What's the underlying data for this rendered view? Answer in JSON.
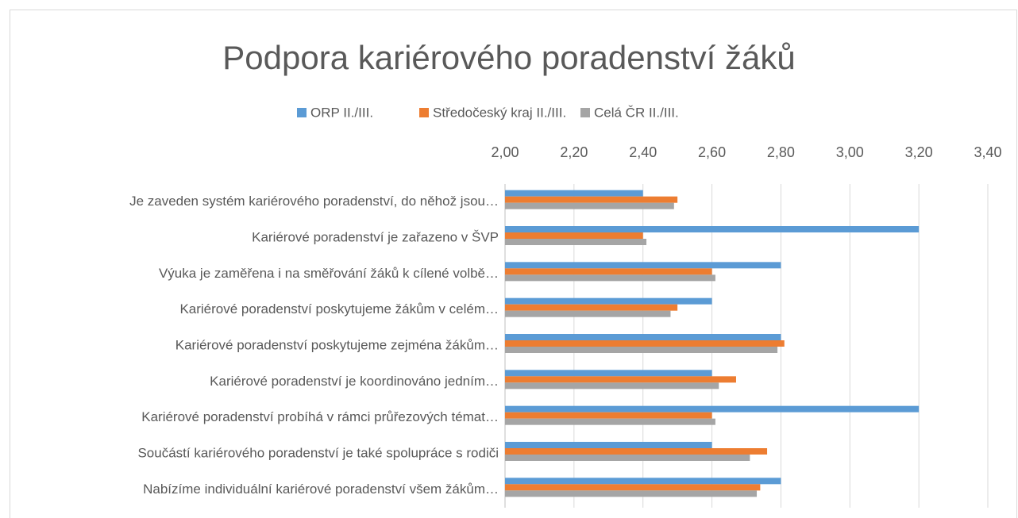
{
  "chart_data": {
    "type": "hbar",
    "title": "Podpora kariérového poradenství žáků",
    "categories": [
      "Je zaveden systém kariérového poradenství, do něhož jsou…",
      "Kariérové poradenství je zařazeno v ŠVP",
      "Výuka je zaměřena i na směřování žáků k cílené volbě…",
      "Kariérové poradenství poskytujeme žákům v celém…",
      "Kariérové poradenství poskytujeme zejména žákům…",
      "Kariérové poradenství je koordinováno jedním…",
      "Kariérové poradenství probíhá v rámci průřezových témat…",
      "Součástí kariérového poradenství je také spolupráce s rodiči",
      "Nabízíme individuální kariérové poradenství všem žákům…"
    ],
    "series": [
      {
        "name": "ORP II./III.",
        "color": "#5b9bd5",
        "values": [
          2.4,
          3.2,
          2.8,
          2.6,
          2.8,
          2.6,
          3.2,
          2.6,
          2.8
        ]
      },
      {
        "name": "Středočeský kraj II./III.",
        "color": "#ed7d31",
        "values": [
          2.5,
          2.4,
          2.6,
          2.5,
          2.81,
          2.67,
          2.6,
          2.76,
          2.74
        ]
      },
      {
        "name": "Celá ČR II./III.",
        "color": "#a5a5a5",
        "values": [
          2.49,
          2.41,
          2.61,
          2.48,
          2.79,
          2.62,
          2.61,
          2.71,
          2.73
        ]
      }
    ],
    "xlim": [
      2.0,
      3.4
    ],
    "xticks": [
      {
        "value": 2.0,
        "label": "2,00"
      },
      {
        "value": 2.2,
        "label": "2,20"
      },
      {
        "value": 2.4,
        "label": "2,40"
      },
      {
        "value": 2.6,
        "label": "2,60"
      },
      {
        "value": 2.8,
        "label": "2,80"
      },
      {
        "value": 3.0,
        "label": "3,00"
      },
      {
        "value": 3.2,
        "label": "3,20"
      },
      {
        "value": 3.4,
        "label": "3,40"
      }
    ],
    "grid": true,
    "legend": "top"
  }
}
